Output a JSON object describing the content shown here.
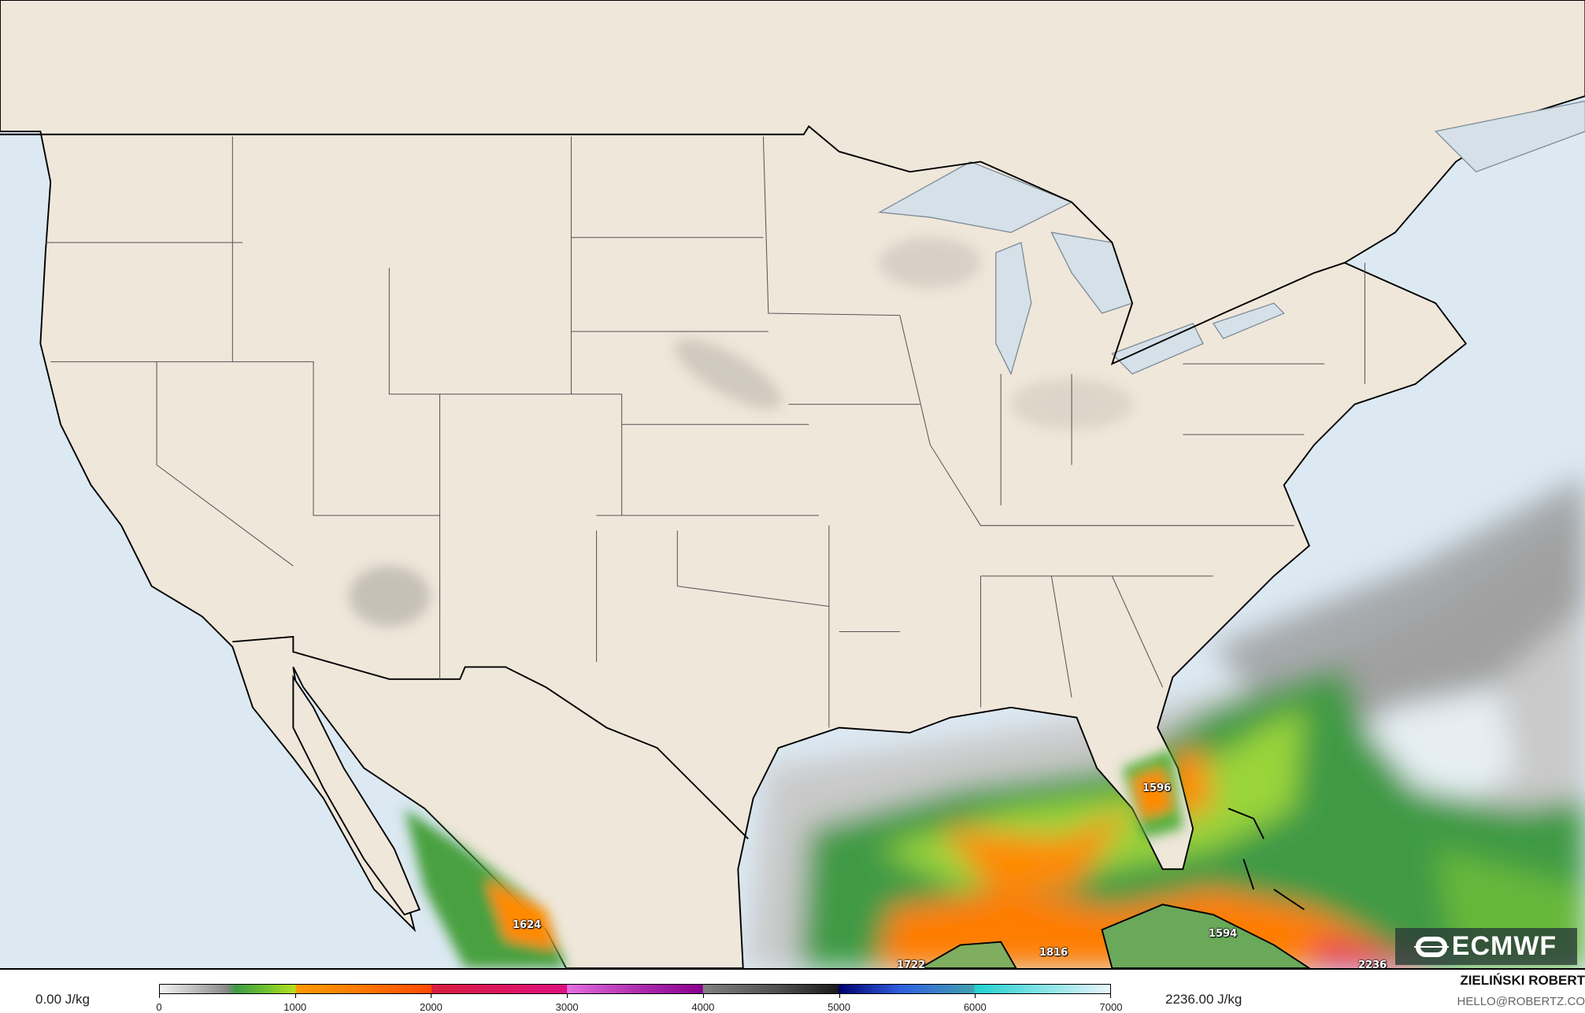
{
  "map": {
    "field": "CAPE",
    "colors": {
      "ocean": "#dce9f3",
      "land": "#efe7da",
      "lakes": "#d5e0e8",
      "borders": "#000000",
      "state_lines": "#555555"
    },
    "value_labels": [
      {
        "text": "1596",
        "region": "central Florida"
      },
      {
        "text": "1624",
        "region": "western Mexico"
      },
      {
        "text": "1722",
        "region": "Yucatan"
      },
      {
        "text": "1816",
        "region": "Gulf of Mexico near Cuba"
      },
      {
        "text": "1594",
        "region": "central Cuba"
      },
      {
        "text": "2236",
        "region": "Caribbean south of Hispaniola"
      }
    ]
  },
  "logo": {
    "text": "ECMWF",
    "icon": "ecmwf-logo-icon"
  },
  "legend": {
    "min_label": "0.00 J/kg",
    "max_label": "2236.00 J/kg",
    "ticks": [
      "0",
      "1000",
      "2000",
      "3000",
      "4000",
      "5000",
      "6000",
      "7000"
    ],
    "range": [
      0,
      7000
    ]
  },
  "credit": {
    "author": "ZIELIŃSKI ROBERT",
    "email": "HELLO@ROBERTZ.CO"
  }
}
